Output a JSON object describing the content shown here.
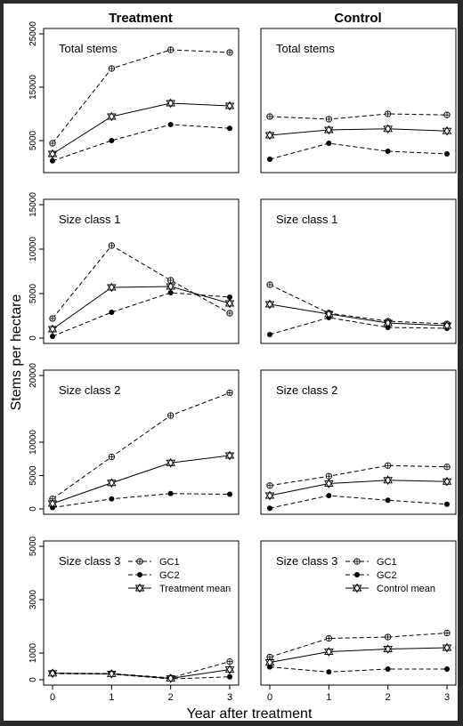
{
  "figure": {
    "column_titles": [
      "Treatment",
      "Control"
    ],
    "ylabel": "Stems per hectare",
    "xlabel": "Year after treatment",
    "x_ticks": [
      "0",
      "1",
      "2",
      "3"
    ]
  },
  "chart_data": [
    {
      "type": "line",
      "column": "Treatment",
      "panel_label": "Total stems",
      "ylim": [
        0,
        25000
      ],
      "yticks": [
        "5000",
        "15000",
        "25000"
      ],
      "x": [
        0,
        1,
        2,
        3
      ],
      "series": [
        {
          "name": "GC1",
          "values": [
            4500,
            18500,
            22000,
            21500
          ]
        },
        {
          "name": "GC2",
          "values": [
            1200,
            5000,
            8000,
            7300
          ]
        },
        {
          "name": "Treatment mean",
          "values": [
            2500,
            9500,
            12000,
            11500
          ]
        }
      ]
    },
    {
      "type": "line",
      "column": "Control",
      "panel_label": "Total stems",
      "ylim": [
        0,
        25000
      ],
      "yticks": [
        "5000",
        "15000",
        "25000"
      ],
      "x": [
        0,
        1,
        2,
        3
      ],
      "series": [
        {
          "name": "GC1",
          "values": [
            9500,
            9000,
            10000,
            9800
          ]
        },
        {
          "name": "GC2",
          "values": [
            1500,
            4500,
            3000,
            2500
          ]
        },
        {
          "name": "Control mean",
          "values": [
            6000,
            7000,
            7200,
            6800
          ]
        }
      ]
    },
    {
      "type": "line",
      "column": "Treatment",
      "panel_label": "Size class 1",
      "ylim": [
        0,
        15000
      ],
      "yticks": [
        "0",
        "5000",
        "10000",
        "15000"
      ],
      "x": [
        0,
        1,
        2,
        3
      ],
      "series": [
        {
          "name": "GC1",
          "values": [
            2200,
            10400,
            6500,
            2800
          ]
        },
        {
          "name": "GC2",
          "values": [
            200,
            2900,
            5100,
            4600
          ]
        },
        {
          "name": "Treatment mean",
          "values": [
            1000,
            5700,
            5800,
            3900
          ]
        }
      ]
    },
    {
      "type": "line",
      "column": "Control",
      "panel_label": "Size class 1",
      "ylim": [
        0,
        15000
      ],
      "yticks": [
        "0",
        "5000",
        "10000",
        "15000"
      ],
      "x": [
        0,
        1,
        2,
        3
      ],
      "series": [
        {
          "name": "GC1",
          "values": [
            6000,
            2800,
            1900,
            1600
          ]
        },
        {
          "name": "GC2",
          "values": [
            400,
            2300,
            1200,
            1100
          ]
        },
        {
          "name": "Control mean",
          "values": [
            3800,
            2700,
            1700,
            1400
          ]
        }
      ]
    },
    {
      "type": "line",
      "column": "Treatment",
      "panel_label": "Size class 2",
      "ylim": [
        0,
        20000
      ],
      "yticks": [
        "0",
        "5000",
        "10000",
        "20000"
      ],
      "x": [
        0,
        1,
        2,
        3
      ],
      "series": [
        {
          "name": "GC1",
          "values": [
            1500,
            7800,
            14000,
            17400
          ]
        },
        {
          "name": "GC2",
          "values": [
            200,
            1500,
            2300,
            2200
          ]
        },
        {
          "name": "Treatment mean",
          "values": [
            800,
            3900,
            6900,
            8000
          ]
        }
      ]
    },
    {
      "type": "line",
      "column": "Control",
      "panel_label": "Size class 2",
      "ylim": [
        0,
        20000
      ],
      "yticks": [
        "0",
        "5000",
        "10000",
        "20000"
      ],
      "x": [
        0,
        1,
        2,
        3
      ],
      "series": [
        {
          "name": "GC1",
          "values": [
            3500,
            4900,
            6500,
            6300
          ]
        },
        {
          "name": "GC2",
          "values": [
            100,
            2000,
            1300,
            700
          ]
        },
        {
          "name": "Control mean",
          "values": [
            2000,
            3800,
            4300,
            4100
          ]
        }
      ]
    },
    {
      "type": "line",
      "column": "Treatment",
      "panel_label": "Size class 3",
      "ylim": [
        0,
        5000
      ],
      "yticks": [
        "0",
        "1000",
        "3000",
        "5000"
      ],
      "x": [
        0,
        1,
        2,
        3
      ],
      "series": [
        {
          "name": "GC1",
          "values": [
            250,
            230,
            70,
            680
          ]
        },
        {
          "name": "GC2",
          "values": [
            230,
            210,
            30,
            110
          ]
        },
        {
          "name": "Treatment mean",
          "values": [
            240,
            220,
            50,
            380
          ]
        }
      ]
    },
    {
      "type": "line",
      "column": "Control",
      "panel_label": "Size class 3",
      "ylim": [
        0,
        5000
      ],
      "yticks": [
        "0",
        "1000",
        "3000",
        "5000"
      ],
      "x": [
        0,
        1,
        2,
        3
      ],
      "series": [
        {
          "name": "GC1",
          "values": [
            850,
            1550,
            1600,
            1750
          ]
        },
        {
          "name": "GC2",
          "values": [
            480,
            290,
            400,
            400
          ]
        },
        {
          "name": "Control mean",
          "values": [
            650,
            1050,
            1150,
            1200
          ]
        }
      ]
    }
  ]
}
